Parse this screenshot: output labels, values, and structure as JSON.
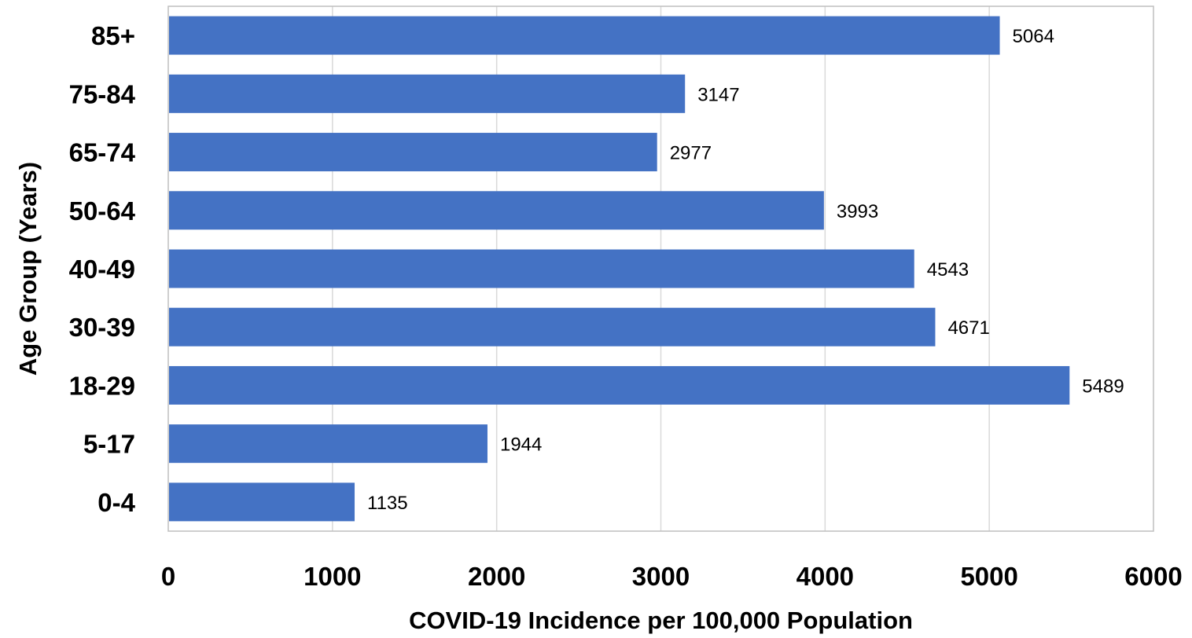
{
  "chart_data": {
    "type": "bar",
    "orientation": "horizontal",
    "title": "",
    "xlabel": "COVID-19 Incidence per 100,000 Population",
    "ylabel": "Age Group (Years)",
    "categories": [
      "0-4",
      "5-17",
      "18-29",
      "30-39",
      "40-49",
      "50-64",
      "65-74",
      "75-84",
      "85+"
    ],
    "values": [
      1135,
      1944,
      5489,
      4671,
      4543,
      3993,
      2977,
      3147,
      5064
    ],
    "xlim": [
      0,
      6000
    ],
    "xticks": [
      0,
      1000,
      2000,
      3000,
      4000,
      5000,
      6000
    ],
    "xtick_labels": [
      "0",
      "1000",
      "2000",
      "3000",
      "4000",
      "5000",
      "6000"
    ],
    "data_labels": [
      "1135",
      "1944",
      "5489",
      "4671",
      "4543",
      "3993",
      "2977",
      "3147",
      "5064"
    ],
    "grid": "vertical",
    "legend": "none",
    "colors": {
      "bar": "#4472C4",
      "grid": "#D9D9D9",
      "border": "#BFBFBF",
      "text": "#000000"
    }
  }
}
